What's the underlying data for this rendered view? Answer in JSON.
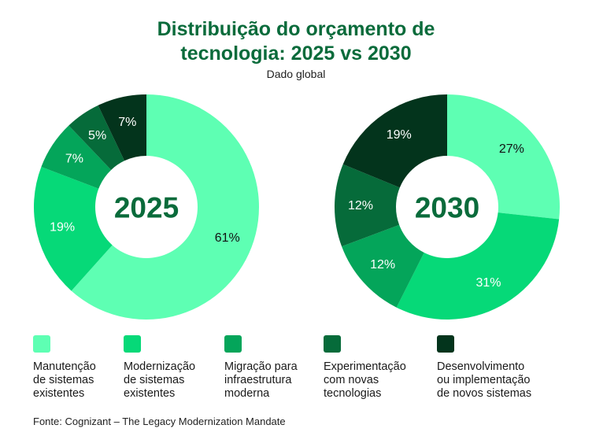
{
  "title_line1": "Distribuição do orçamento de",
  "title_line2": "tecnologia: 2025 vs 2030",
  "subtitle": "Dado global",
  "source": "Fonte: Cognizant – The Legacy Modernization Mandate",
  "colors": [
    "#5effb3",
    "#06d978",
    "#04a55a",
    "#066b3a",
    "#03341c"
  ],
  "chart_data": [
    {
      "type": "pie",
      "center_label": "2025",
      "categories": [
        "Manutenção de sistemas existentes",
        "Modernização de sistemas existentes",
        "Migração para infraestrutura moderna",
        "Experimentação com novas tecnologias",
        "Desenvolvimento ou implementação de novos sistemas"
      ],
      "values": [
        61,
        19,
        7,
        5,
        7
      ],
      "labels": [
        "61%",
        "19%",
        "7%",
        "5%",
        "7%"
      ],
      "legend": "bottom"
    },
    {
      "type": "pie",
      "center_label": "2030",
      "categories": [
        "Manutenção de sistemas existentes",
        "Modernização de sistemas existentes",
        "Migração para infraestrutura moderna",
        "Experimentação com novas tecnologias",
        "Desenvolvimento ou implementação de novos sistemas"
      ],
      "values": [
        27,
        31,
        12,
        12,
        19
      ],
      "labels": [
        "27%",
        "31%",
        "12%",
        "12%",
        "19%"
      ],
      "legend": "bottom"
    }
  ],
  "legend": [
    {
      "lines": [
        "Manutenção",
        "de sistemas",
        "existentes"
      ]
    },
    {
      "lines": [
        "Modernização",
        "de sistemas",
        "existentes"
      ]
    },
    {
      "lines": [
        "Migração para",
        "infraestrutura",
        "moderna"
      ]
    },
    {
      "lines": [
        "Experimentação",
        "com novas",
        "tecnologias"
      ]
    },
    {
      "lines": [
        "Desenvolvimento",
        "ou implementação",
        "de novos sistemas"
      ]
    }
  ]
}
